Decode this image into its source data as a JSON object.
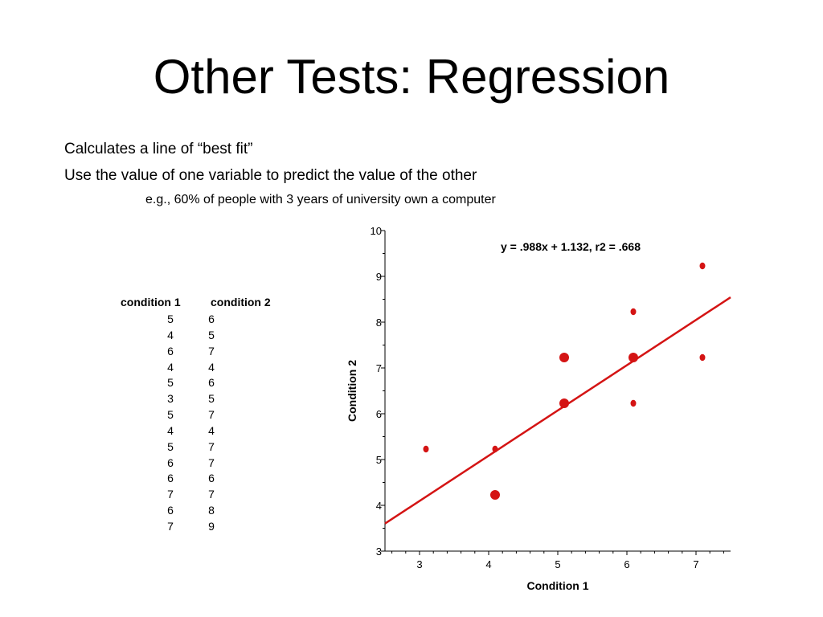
{
  "slide": {
    "title": "Other Tests: Regression",
    "bullets": [
      "Calculates a line of “best fit”",
      "Use the value of one variable to predict the value of the other"
    ],
    "sub_bullet": "e.g., 60% of people with 3 years of university own a computer"
  },
  "table": {
    "headers": [
      "condition 1",
      "condition 2"
    ],
    "rows": [
      [
        "5",
        "6"
      ],
      [
        "4",
        "5"
      ],
      [
        "6",
        "7"
      ],
      [
        "4",
        "4"
      ],
      [
        "5",
        "6"
      ],
      [
        "3",
        "5"
      ],
      [
        "5",
        "7"
      ],
      [
        "4",
        "4"
      ],
      [
        "5",
        "7"
      ],
      [
        "6",
        "7"
      ],
      [
        "6",
        "6"
      ],
      [
        "7",
        "7"
      ],
      [
        "6",
        "8"
      ],
      [
        "7",
        "9"
      ]
    ]
  },
  "chart_data": {
    "type": "scatter",
    "xlabel": "Condition 1",
    "ylabel": "Condition 2",
    "xlim": [
      2.5,
      7.5
    ],
    "ylim": [
      3,
      10
    ],
    "x_ticks": [
      "3",
      "4",
      "5",
      "6",
      "7"
    ],
    "y_ticks": [
      "3",
      "4",
      "5",
      "6",
      "7",
      "8",
      "9",
      "10"
    ],
    "points": [
      {
        "x": 3,
        "y": 5,
        "count": 1
      },
      {
        "x": 4,
        "y": 5,
        "count": 1
      },
      {
        "x": 4,
        "y": 4,
        "count": 2
      },
      {
        "x": 5,
        "y": 6,
        "count": 2
      },
      {
        "x": 5,
        "y": 7,
        "count": 2
      },
      {
        "x": 6,
        "y": 7,
        "count": 2
      },
      {
        "x": 6,
        "y": 6,
        "count": 1
      },
      {
        "x": 6,
        "y": 8,
        "count": 1
      },
      {
        "x": 7,
        "y": 7,
        "count": 1
      },
      {
        "x": 7,
        "y": 9,
        "count": 1
      }
    ],
    "regression": {
      "slope": 0.988,
      "intercept": 1.132,
      "label": "y = .988x + 1.132, r2 = .668"
    },
    "grid": false,
    "color": "#d41414"
  }
}
